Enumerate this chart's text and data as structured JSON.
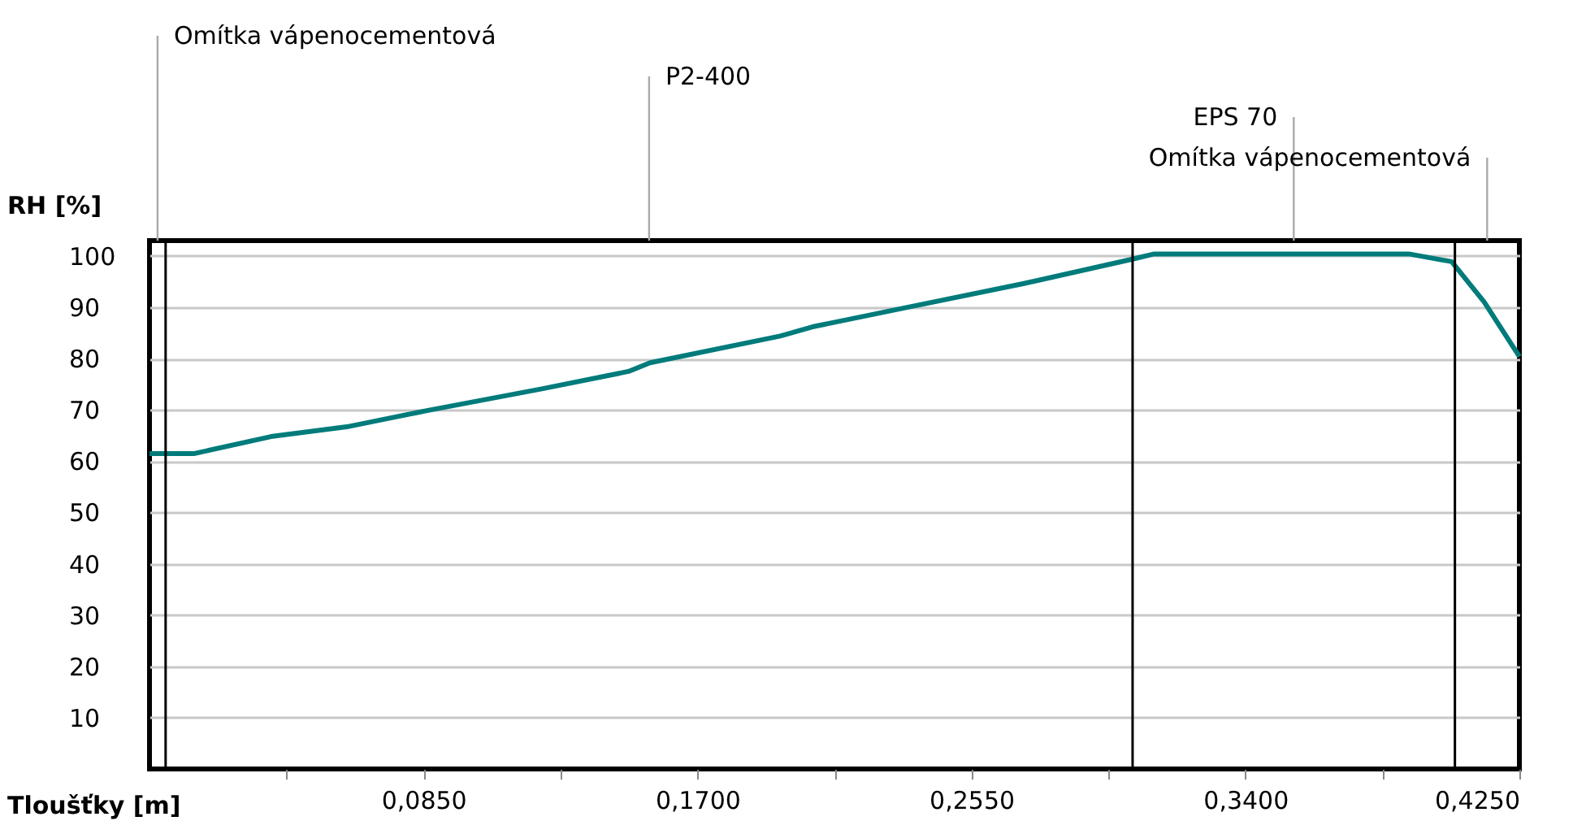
{
  "chart_data": {
    "type": "line",
    "xlabel": "Tloušťky [m]",
    "ylabel": "RH [%]",
    "x": [
      0,
      0.014,
      0.0377,
      0.0612,
      0.0864,
      0.1217,
      0.1486,
      0.1553,
      0.1957,
      0.2057,
      0.236,
      0.271,
      0.305,
      0.3117,
      0.3907,
      0.404,
      0.4141,
      0.425
    ],
    "series": [
      {
        "color": "#007b7b",
        "values": [
          61.5,
          61.5,
          64.8,
          66.7,
          69.9,
          74.1,
          77.5,
          79.2,
          84.4,
          86.2,
          90.1,
          94.6,
          99.4,
          100.4,
          100.4,
          98.9,
          91.0,
          80.4
        ]
      }
    ],
    "xlim": [
      0,
      0.425
    ],
    "ylim": [
      0,
      103
    ],
    "xticks": [
      {
        "value": 0.0425,
        "label": null
      },
      {
        "value": 0.085,
        "label": "0,0850"
      },
      {
        "value": 0.1275,
        "label": null
      },
      {
        "value": 0.17,
        "label": "0,1700"
      },
      {
        "value": 0.2125,
        "label": null
      },
      {
        "value": 0.255,
        "label": "0,2550"
      },
      {
        "value": 0.2975,
        "label": null
      },
      {
        "value": 0.34,
        "label": "0,3400"
      },
      {
        "value": 0.3825,
        "label": null
      },
      {
        "value": 0.425,
        "label": "0,4250"
      }
    ],
    "yticks": [
      10,
      20,
      30,
      40,
      50,
      60,
      70,
      80,
      90,
      100
    ],
    "ref_lines": [
      {
        "axis": "x",
        "value": 0.005,
        "color": "#000000"
      },
      {
        "axis": "x",
        "value": 0.305,
        "color": "#000000"
      },
      {
        "axis": "x",
        "value": 0.405,
        "color": "#000000"
      }
    ],
    "annotations": [
      "Omítka vápenocementová",
      "P2-400",
      "EPS 70",
      "Omítka vápenocementová"
    ],
    "grid": "y",
    "marker": "none",
    "line_style": "solid"
  }
}
